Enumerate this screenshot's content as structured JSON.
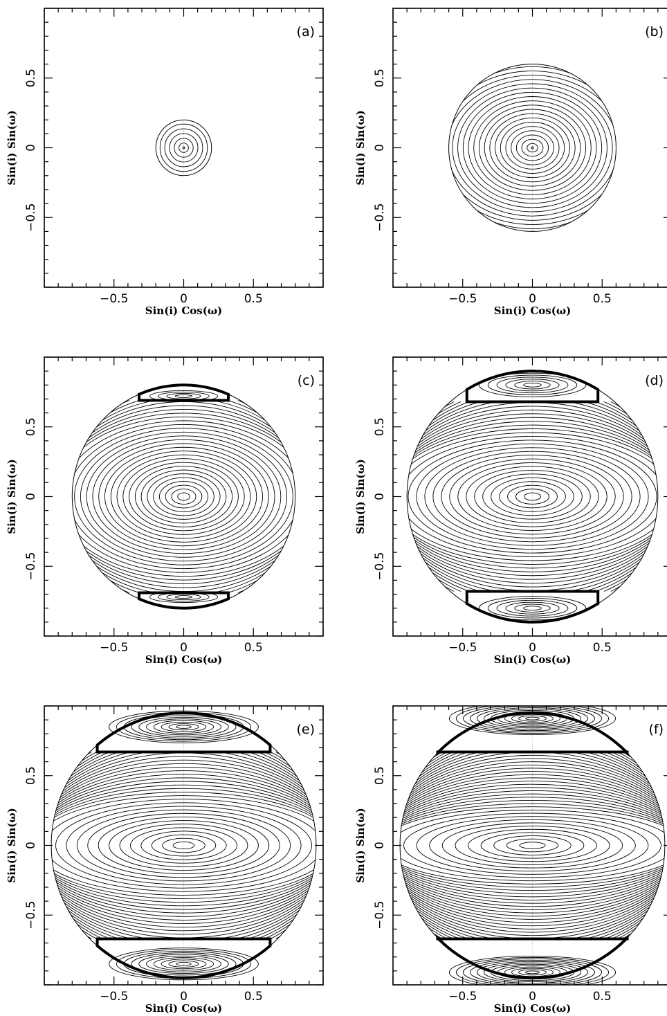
{
  "chart_data": [
    {
      "type": "contour",
      "panel_label": "(a)",
      "xlabel": "Sin(i) Cos(ω)",
      "ylabel": "Sin(i) Sin(ω)",
      "xlim": [
        -1,
        1
      ],
      "ylim": [
        -1,
        1
      ],
      "xticks": [
        -0.5,
        0,
        0.5
      ],
      "yticks": [
        -0.5,
        0,
        0.5
      ],
      "tick_labels": [
        "−0.5",
        "0",
        "0.5"
      ],
      "max_sin_i": 0.2,
      "center_level_count": 6,
      "center_aspect": 1.0,
      "kozai_lobes": false
    },
    {
      "type": "contour",
      "panel_label": "(b)",
      "xlabel": "Sin(i) Cos(ω)",
      "ylabel": "Sin(i) Sin(ω)",
      "xlim": [
        -1,
        1
      ],
      "ylim": [
        -1,
        1
      ],
      "xticks": [
        -0.5,
        0,
        0.5
      ],
      "yticks": [
        -0.5,
        0,
        0.5
      ],
      "tick_labels": [
        "−0.5",
        "0",
        "0.5"
      ],
      "max_sin_i": 0.6,
      "center_level_count": 20,
      "center_aspect": 1.25,
      "kozai_lobes": false
    },
    {
      "type": "contour",
      "panel_label": "(c)",
      "xlabel": "Sin(i) Cos(ω)",
      "ylabel": "Sin(i) Sin(ω)",
      "xlim": [
        -1,
        1
      ],
      "ylim": [
        -1,
        1
      ],
      "xticks": [
        -0.5,
        0,
        0.5
      ],
      "yticks": [
        -0.5,
        0,
        0.5
      ],
      "tick_labels": [
        "−0.5",
        "0",
        "0.5"
      ],
      "max_sin_i": 0.8,
      "center_level_count": 30,
      "center_aspect": 1.6,
      "kozai_lobes": true,
      "lobe_center_y": 0.72,
      "separatrix_inner_y": 0.69,
      "separatrix_half_width": 0.32,
      "lobe_level_count": 4
    },
    {
      "type": "contour",
      "panel_label": "(d)",
      "xlabel": "Sin(i) Cos(ω)",
      "ylabel": "Sin(i) Sin(ω)",
      "xlim": [
        -1,
        1
      ],
      "ylim": [
        -1,
        1
      ],
      "xticks": [
        -0.5,
        0,
        0.5
      ],
      "yticks": [
        -0.5,
        0,
        0.5
      ],
      "tick_labels": [
        "−0.5",
        "0",
        "0.5"
      ],
      "max_sin_i": 0.9,
      "center_level_count": 34,
      "center_aspect": 2.2,
      "kozai_lobes": true,
      "lobe_center_y": 0.8,
      "separatrix_inner_y": 0.68,
      "separatrix_half_width": 0.47,
      "lobe_level_count": 6
    },
    {
      "type": "contour",
      "panel_label": "(e)",
      "xlabel": "Sin(i) Cos(ω)",
      "ylabel": "Sin(i) Sin(ω)",
      "xlim": [
        -1,
        1
      ],
      "ylim": [
        -1,
        1
      ],
      "xticks": [
        -0.5,
        0,
        0.5
      ],
      "yticks": [
        -0.5,
        0,
        0.5
      ],
      "tick_labels": [
        "−0.5",
        "0",
        "0.5"
      ],
      "max_sin_i": 0.95,
      "center_level_count": 38,
      "center_aspect": 3.0,
      "kozai_lobes": true,
      "lobe_center_y": 0.85,
      "separatrix_inner_y": 0.67,
      "separatrix_half_width": 0.62,
      "lobe_level_count": 10
    },
    {
      "type": "contour",
      "panel_label": "(f)",
      "xlabel": "Sin(i) Cos(ω)",
      "ylabel": "Sin(i) Sin(ω)",
      "xlim": [
        -1,
        1
      ],
      "ylim": [
        -1,
        1
      ],
      "xticks": [
        -0.5,
        0,
        0.5
      ],
      "yticks": [
        -0.5,
        0,
        0.5
      ],
      "tick_labels": [
        "−0.5",
        "0",
        "0.5"
      ],
      "max_sin_i": 0.95,
      "center_level_count": 42,
      "center_aspect": 4.0,
      "kozai_lobes": true,
      "lobe_center_y": 0.91,
      "separatrix_inner_y": 0.67,
      "separatrix_half_width": 0.68,
      "lobe_level_count": 12
    }
  ]
}
